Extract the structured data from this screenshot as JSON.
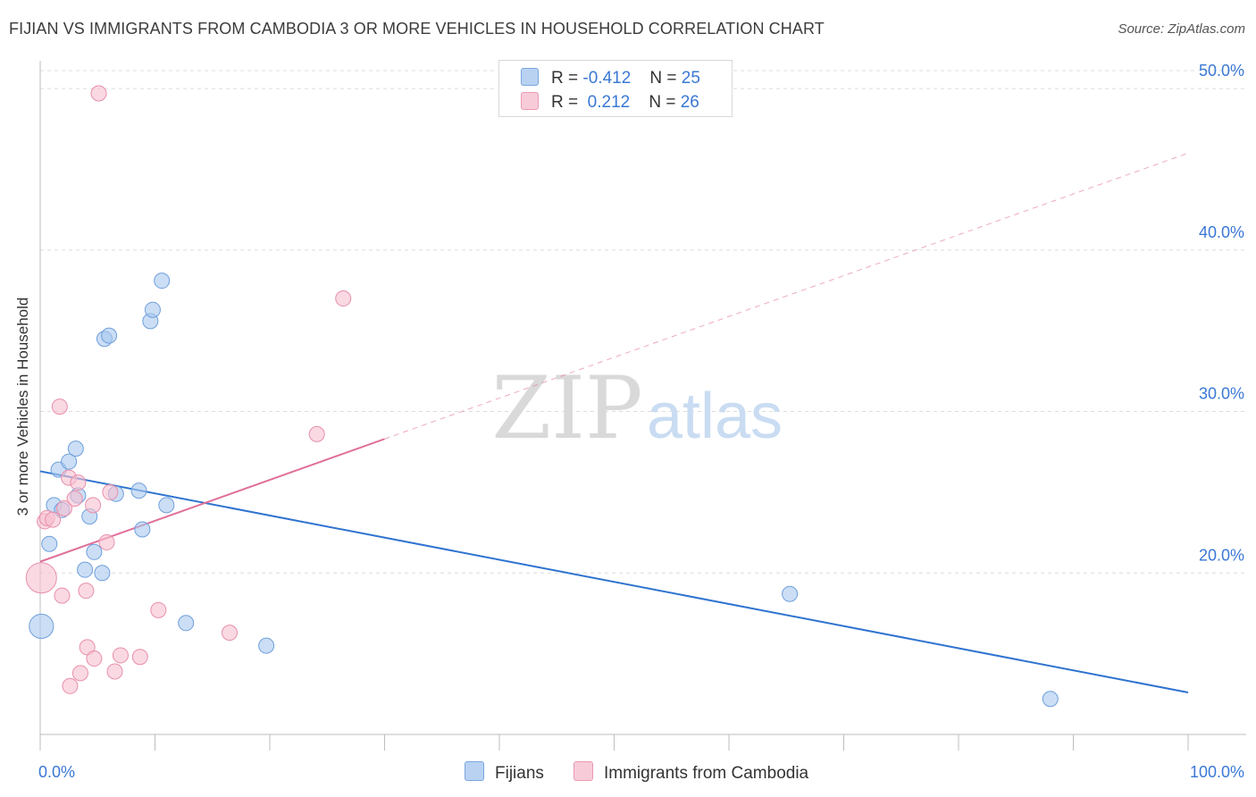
{
  "title": "FIJIAN VS IMMIGRANTS FROM CAMBODIA 3 OR MORE VEHICLES IN HOUSEHOLD CORRELATION CHART",
  "source": "Source: ZipAtlas.com",
  "watermark": {
    "zip": "ZIP",
    "atlas": "atlas"
  },
  "legend": {
    "rows": [
      {
        "r_label": "R =",
        "r_value": "-0.412",
        "n_label": "N =",
        "n_value": "25"
      },
      {
        "r_label": "R =",
        "r_value": " 0.212",
        "n_label": "N =",
        "n_value": "26"
      }
    ]
  },
  "colors": {
    "fijians_fill": "#a9c8ef",
    "fijians_stroke": "#6f9fdc",
    "fijians_line": "#2f73d0",
    "cambodia_fill": "#f6c0d0",
    "cambodia_stroke": "#e88fab",
    "cambodia_line": "#e0709a",
    "tick_label": "#3a78d4",
    "grid": "#dcdcdc"
  },
  "chart_data": {
    "type": "scatter",
    "title": "FIJIAN VS IMMIGRANTS FROM CAMBODIA 3 OR MORE VEHICLES IN HOUSEHOLD CORRELATION CHART",
    "xlabel": "",
    "ylabel": "3 or more Vehicles in Household",
    "xlim": [
      0,
      100
    ],
    "ylim": [
      10,
      51.5
    ],
    "x_tick_labels": [
      "0.0%",
      "100.0%"
    ],
    "y_ticks": [
      20,
      30,
      40,
      50
    ],
    "y_tick_labels": [
      "20.0%",
      "30.0%",
      "40.0%",
      "50.0%"
    ],
    "grid": true,
    "legend_position": "bottom-center",
    "series": [
      {
        "name": "Fijians",
        "r": -0.412,
        "n": 25,
        "points": [
          {
            "x": 0.1,
            "y": 16.7,
            "size": 1.6
          },
          {
            "x": 0.8,
            "y": 21.8,
            "size": 1.0
          },
          {
            "x": 1.2,
            "y": 24.2,
            "size": 1.0
          },
          {
            "x": 1.6,
            "y": 26.4,
            "size": 1.0
          },
          {
            "x": 1.9,
            "y": 23.9,
            "size": 1.0
          },
          {
            "x": 2.5,
            "y": 26.9,
            "size": 1.0
          },
          {
            "x": 3.1,
            "y": 27.7,
            "size": 1.0
          },
          {
            "x": 3.3,
            "y": 24.8,
            "size": 1.0
          },
          {
            "x": 3.9,
            "y": 20.2,
            "size": 1.0
          },
          {
            "x": 4.3,
            "y": 23.5,
            "size": 1.0
          },
          {
            "x": 4.7,
            "y": 21.3,
            "size": 1.0
          },
          {
            "x": 5.4,
            "y": 20.0,
            "size": 1.0
          },
          {
            "x": 5.6,
            "y": 34.5,
            "size": 1.0
          },
          {
            "x": 6.0,
            "y": 34.7,
            "size": 1.0
          },
          {
            "x": 6.6,
            "y": 24.9,
            "size": 1.0
          },
          {
            "x": 8.6,
            "y": 25.1,
            "size": 1.0
          },
          {
            "x": 8.9,
            "y": 22.7,
            "size": 1.0
          },
          {
            "x": 9.6,
            "y": 35.6,
            "size": 1.0
          },
          {
            "x": 9.8,
            "y": 36.3,
            "size": 1.0
          },
          {
            "x": 10.6,
            "y": 38.1,
            "size": 1.0
          },
          {
            "x": 11.0,
            "y": 24.2,
            "size": 1.0
          },
          {
            "x": 12.7,
            "y": 16.9,
            "size": 1.0
          },
          {
            "x": 19.7,
            "y": 15.5,
            "size": 1.0
          },
          {
            "x": 65.3,
            "y": 18.7,
            "size": 1.0
          },
          {
            "x": 88.0,
            "y": 12.2,
            "size": 1.0
          }
        ],
        "trend": {
          "x": [
            0,
            100
          ],
          "y": [
            26.3,
            12.6
          ],
          "style": "solid"
        }
      },
      {
        "name": "Immigrants from Cambodia",
        "r": 0.212,
        "n": 26,
        "points": [
          {
            "x": 0.1,
            "y": 19.7,
            "size": 2.0
          },
          {
            "x": 0.4,
            "y": 23.2,
            "size": 1.0
          },
          {
            "x": 0.6,
            "y": 23.4,
            "size": 1.0
          },
          {
            "x": 1.1,
            "y": 23.3,
            "size": 1.0
          },
          {
            "x": 1.7,
            "y": 30.3,
            "size": 1.0
          },
          {
            "x": 1.9,
            "y": 18.6,
            "size": 1.0
          },
          {
            "x": 2.1,
            "y": 24.0,
            "size": 1.0
          },
          {
            "x": 2.5,
            "y": 25.9,
            "size": 1.0
          },
          {
            "x": 2.6,
            "y": 13.0,
            "size": 1.0
          },
          {
            "x": 3.0,
            "y": 24.6,
            "size": 1.0
          },
          {
            "x": 3.3,
            "y": 25.6,
            "size": 1.0
          },
          {
            "x": 3.5,
            "y": 13.8,
            "size": 1.0
          },
          {
            "x": 4.0,
            "y": 18.9,
            "size": 1.0
          },
          {
            "x": 4.1,
            "y": 15.4,
            "size": 1.0
          },
          {
            "x": 4.7,
            "y": 14.7,
            "size": 1.0
          },
          {
            "x": 5.8,
            "y": 21.9,
            "size": 1.0
          },
          {
            "x": 6.1,
            "y": 25.0,
            "size": 1.0
          },
          {
            "x": 6.5,
            "y": 13.9,
            "size": 1.0
          },
          {
            "x": 7.0,
            "y": 14.9,
            "size": 1.0
          },
          {
            "x": 8.7,
            "y": 14.8,
            "size": 1.0
          },
          {
            "x": 10.3,
            "y": 17.7,
            "size": 1.0
          },
          {
            "x": 16.5,
            "y": 16.3,
            "size": 1.0
          },
          {
            "x": 24.1,
            "y": 28.6,
            "size": 1.0
          },
          {
            "x": 26.4,
            "y": 37.0,
            "size": 1.0
          },
          {
            "x": 5.1,
            "y": 49.7,
            "size": 1.0
          },
          {
            "x": 4.6,
            "y": 24.2,
            "size": 1.0
          }
        ],
        "trend": {
          "x": [
            0,
            30,
            100
          ],
          "y": [
            20.7,
            28.3,
            46.0
          ],
          "style": "solid-then-dashed",
          "solid_until": 30
        }
      }
    ]
  },
  "bottom_legend": {
    "items": [
      {
        "label": "Fijians"
      },
      {
        "label": "Immigrants from Cambodia"
      }
    ]
  }
}
